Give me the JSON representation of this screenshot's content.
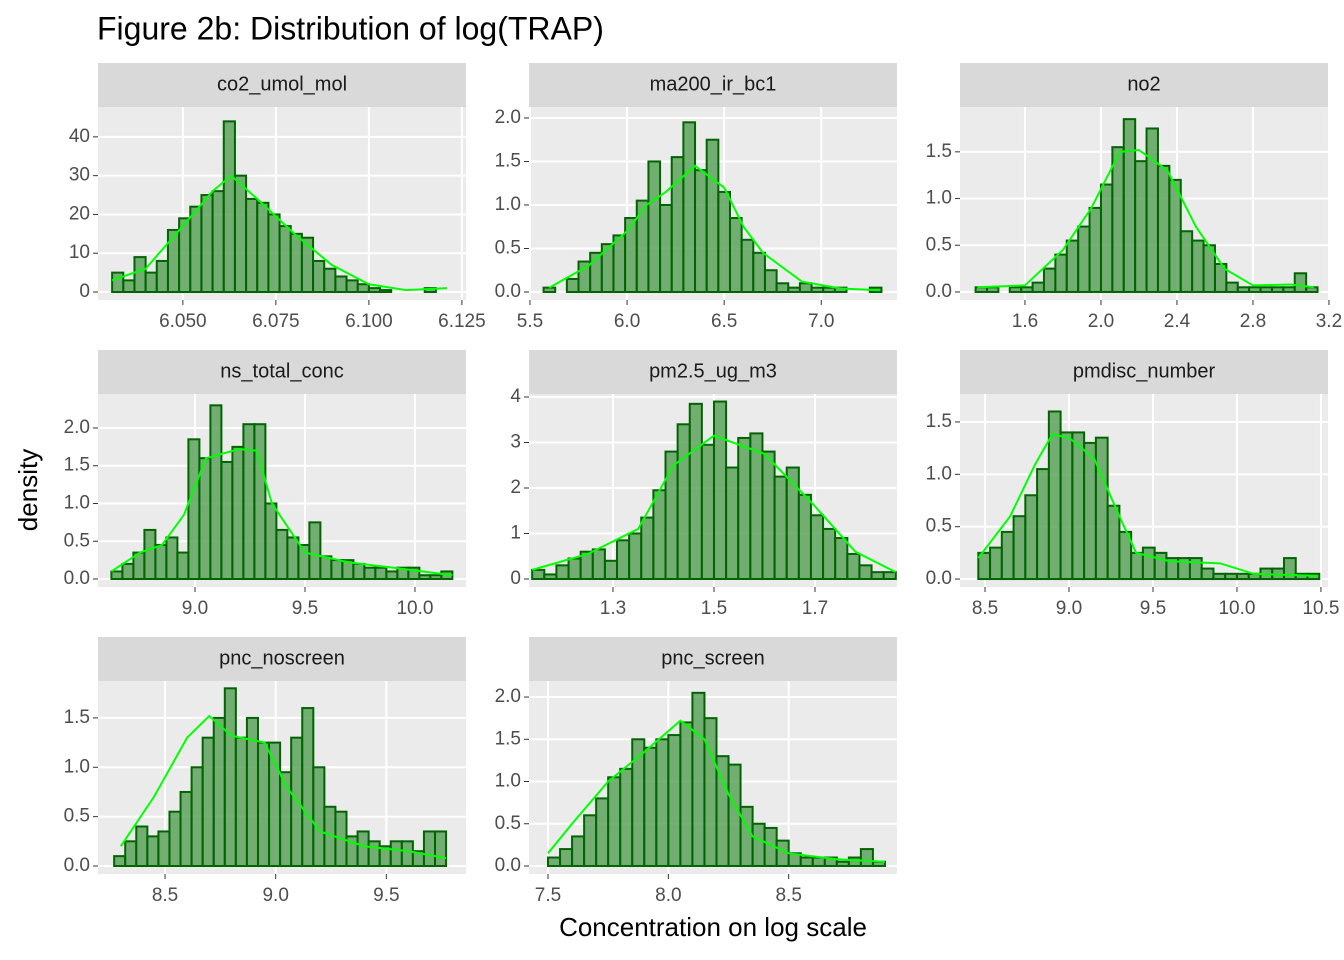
{
  "title": "Figure 2b: Distribution of log(TRAP)",
  "xlabel": "Concentration on log scale",
  "ylabel": "density",
  "chart_data": [
    {
      "type": "histogram",
      "title": "co2_umol_mol",
      "color": "#5da35d",
      "edgecolor": "#006400",
      "curve_color": "#00ff00",
      "grid": true,
      "bins": [
        6.031,
        6.034,
        6.037,
        6.04,
        6.043,
        6.046,
        6.049,
        6.052,
        6.055,
        6.058,
        6.061,
        6.064,
        6.067,
        6.07,
        6.073,
        6.076,
        6.079,
        6.082,
        6.085,
        6.088,
        6.091,
        6.094,
        6.097,
        6.1,
        6.103,
        6.106,
        6.109,
        6.112,
        6.115,
        6.118,
        6.121
      ],
      "values": [
        5,
        3,
        9,
        5,
        8,
        16,
        19,
        22,
        25,
        26,
        44,
        30,
        24,
        23,
        20,
        17,
        15,
        14,
        8,
        6,
        4,
        3,
        2,
        1,
        0.5,
        0,
        0,
        0,
        1,
        0
      ],
      "density_x": [
        6.031,
        6.04,
        6.05,
        6.058,
        6.063,
        6.07,
        6.08,
        6.09,
        6.1,
        6.11,
        6.121
      ],
      "density_y": [
        3,
        6,
        17,
        26,
        30,
        24,
        15,
        7,
        2,
        0.5,
        1
      ],
      "xlim": [
        6.0272,
        6.1261
      ],
      "ylim": [
        -2.06,
        47.7
      ],
      "xticks": [
        {
          "value": 6.05,
          "label": "6.050"
        },
        6.075,
        {
          "value": 6.1,
          "label": "6.100"
        },
        6.125
      ],
      "yticks": [
        0,
        10,
        20,
        30,
        40
      ]
    },
    {
      "type": "histogram",
      "title": "ma200_ir_bc1",
      "color": "#5da35d",
      "edgecolor": "#006400",
      "curve_color": "#00ff00",
      "grid": true,
      "bins": [
        5.57,
        5.63,
        5.69,
        5.75,
        5.81,
        5.87,
        5.93,
        5.99,
        6.05,
        6.11,
        6.17,
        6.23,
        6.29,
        6.35,
        6.41,
        6.47,
        6.53,
        6.59,
        6.65,
        6.71,
        6.77,
        6.83,
        6.89,
        6.95,
        7.01,
        7.07,
        7.13,
        7.19,
        7.25,
        7.31
      ],
      "values": [
        0.05,
        0,
        0.15,
        0.35,
        0.45,
        0.55,
        0.65,
        0.85,
        1.05,
        1.5,
        1.0,
        1.55,
        1.95,
        1.4,
        1.75,
        1.15,
        0.85,
        0.6,
        0.45,
        0.25,
        0.1,
        0.05,
        0.1,
        0.05,
        0.05,
        0.05,
        0,
        0,
        0.05
      ],
      "density_x": [
        5.6,
        5.8,
        6.0,
        6.1,
        6.2,
        6.35,
        6.5,
        6.6,
        6.7,
        6.9,
        7.1,
        7.3
      ],
      "density_y": [
        0.05,
        0.3,
        0.7,
        1.0,
        1.15,
        1.45,
        1.2,
        0.75,
        0.45,
        0.12,
        0.04,
        0.02
      ],
      "xlim": [
        5.495,
        7.39
      ],
      "ylim": [
        -0.092,
        2.126
      ],
      "xticks": [
        5.5,
        {
          "value": 6,
          "label": "6.0"
        },
        6.5,
        {
          "value": 7,
          "label": "7.0"
        }
      ],
      "yticks": [
        {
          "value": 0,
          "label": "0.0"
        },
        0.5,
        {
          "value": 1,
          "label": "1.0"
        },
        1.5,
        {
          "value": 2,
          "label": "2.0"
        }
      ]
    },
    {
      "type": "histogram",
      "title": "no2",
      "color": "#5da35d",
      "edgecolor": "#006400",
      "curve_color": "#00ff00",
      "grid": true,
      "bins": [
        1.34,
        1.4,
        1.46,
        1.52,
        1.58,
        1.64,
        1.7,
        1.76,
        1.82,
        1.88,
        1.94,
        2,
        2.06,
        2.12,
        2.18,
        2.24,
        2.3,
        2.36,
        2.42,
        2.48,
        2.54,
        2.6,
        2.66,
        2.72,
        2.78,
        2.84,
        2.9,
        2.96,
        3.02,
        3.08,
        3.14
      ],
      "values": [
        0.05,
        0.05,
        0,
        0.05,
        0.05,
        0.1,
        0.25,
        0.4,
        0.55,
        0.7,
        0.9,
        1.15,
        1.55,
        1.85,
        1.4,
        1.75,
        1.35,
        1.2,
        0.65,
        0.55,
        0.5,
        0.3,
        0.1,
        0.05,
        0.05,
        0.05,
        0.05,
        0.05,
        0.2,
        0.05
      ],
      "density_x": [
        1.35,
        1.6,
        1.8,
        1.95,
        2.1,
        2.2,
        2.35,
        2.5,
        2.65,
        2.8,
        3.0,
        3.12
      ],
      "density_y": [
        0.05,
        0.07,
        0.45,
        0.9,
        1.5,
        1.52,
        1.3,
        0.7,
        0.25,
        0.07,
        0.08,
        0.05
      ],
      "xlim": [
        1.258,
        3.195
      ],
      "ylim": [
        -0.086,
        1.98
      ],
      "xticks": [
        1.6,
        {
          "value": 2,
          "label": "2.0"
        },
        2.4,
        2.8,
        3.2
      ],
      "yticks": [
        {
          "value": 0,
          "label": "0.0"
        },
        0.5,
        {
          "value": 1,
          "label": "1.0"
        },
        1.5
      ]
    },
    {
      "type": "histogram",
      "title": "ns_total_conc",
      "color": "#5da35d",
      "edgecolor": "#006400",
      "curve_color": "#00ff00",
      "grid": true,
      "bins": [
        8.62,
        8.67,
        8.72,
        8.77,
        8.82,
        8.87,
        8.92,
        8.97,
        9.02,
        9.07,
        9.12,
        9.17,
        9.22,
        9.27,
        9.32,
        9.37,
        9.42,
        9.47,
        9.52,
        9.57,
        9.62,
        9.67,
        9.72,
        9.77,
        9.82,
        9.87,
        9.92,
        9.97,
        10.02,
        10.07,
        10.12,
        10.17
      ],
      "values": [
        0.1,
        0.2,
        0.35,
        0.65,
        0.45,
        0.55,
        0.35,
        1.85,
        1.6,
        2.3,
        1.55,
        1.75,
        2.05,
        2.05,
        1.0,
        0.65,
        0.55,
        0.45,
        0.75,
        0.3,
        0.25,
        0.25,
        0.2,
        0.15,
        0.15,
        0.1,
        0.15,
        0.15,
        0.05,
        0.05,
        0.1
      ],
      "density_x": [
        8.62,
        8.75,
        8.85,
        8.95,
        9.05,
        9.2,
        9.28,
        9.35,
        9.5,
        9.7,
        9.9,
        10.17
      ],
      "density_y": [
        0.1,
        0.35,
        0.45,
        0.85,
        1.6,
        1.72,
        1.7,
        1.0,
        0.35,
        0.22,
        0.15,
        0.05
      ],
      "xlim": [
        8.559,
        10.232
      ],
      "ylim": [
        -0.106,
        2.45
      ],
      "xticks": [
        {
          "value": 9,
          "label": "9.0"
        },
        9.5,
        {
          "value": 10,
          "label": "10.0"
        }
      ],
      "yticks": [
        {
          "value": 0,
          "label": "0.0"
        },
        0.5,
        {
          "value": 1,
          "label": "1.0"
        },
        1.5,
        {
          "value": 2,
          "label": "2.0"
        }
      ]
    },
    {
      "type": "histogram",
      "title": "pm2.5_ug_m3",
      "color": "#5da35d",
      "edgecolor": "#006400",
      "curve_color": "#00ff00",
      "grid": true,
      "bins": [
        1.14,
        1.164,
        1.188,
        1.212,
        1.236,
        1.26,
        1.284,
        1.308,
        1.332,
        1.356,
        1.38,
        1.404,
        1.428,
        1.452,
        1.476,
        1.5,
        1.524,
        1.548,
        1.572,
        1.596,
        1.62,
        1.644,
        1.668,
        1.692,
        1.716,
        1.74,
        1.764,
        1.788,
        1.812,
        1.836,
        1.86
      ],
      "values": [
        0.2,
        0.1,
        0.3,
        0.45,
        0.6,
        0.65,
        0.4,
        0.85,
        1.0,
        1.35,
        1.95,
        2.8,
        3.4,
        3.85,
        2.95,
        3.9,
        2.45,
        3.1,
        3.2,
        2.8,
        2.25,
        2.45,
        1.85,
        1.4,
        1.1,
        0.9,
        0.55,
        0.3,
        0.15,
        0.15
      ],
      "density_x": [
        1.14,
        1.25,
        1.35,
        1.42,
        1.5,
        1.55,
        1.6,
        1.7,
        1.78,
        1.86
      ],
      "density_y": [
        0.2,
        0.55,
        1.1,
        2.5,
        3.15,
        2.95,
        2.75,
        1.6,
        0.6,
        0.15
      ],
      "xlim": [
        1.1337,
        1.8624
      ],
      "ylim": [
        -0.176,
        4.066
      ],
      "xticks": [
        1.3,
        1.5,
        1.7
      ],
      "yticks": [
        0,
        1,
        2,
        3,
        4
      ]
    },
    {
      "type": "histogram",
      "title": "pmdisc_number",
      "color": "#5da35d",
      "edgecolor": "#006400",
      "curve_color": "#00ff00",
      "grid": true,
      "bins": [
        8.46,
        8.53,
        8.6,
        8.67,
        8.74,
        8.81,
        8.88,
        8.95,
        9.02,
        9.09,
        9.16,
        9.23,
        9.3,
        9.37,
        9.44,
        9.51,
        9.58,
        9.65,
        9.72,
        9.79,
        9.86,
        9.93,
        10,
        10.07,
        10.14,
        10.21,
        10.28,
        10.35,
        10.42,
        10.49
      ],
      "values": [
        0.25,
        0.3,
        0.45,
        0.6,
        0.8,
        1.05,
        1.6,
        1.4,
        1.4,
        1.3,
        1.35,
        0.7,
        0.45,
        0.25,
        0.3,
        0.25,
        0.2,
        0.2,
        0.2,
        0.1,
        0.05,
        0.05,
        0.05,
        0.05,
        0.1,
        0.1,
        0.2,
        0.05,
        0.05
      ],
      "density_x": [
        8.46,
        8.65,
        8.8,
        8.9,
        9.0,
        9.15,
        9.3,
        9.4,
        9.6,
        9.9,
        10.1,
        10.48
      ],
      "density_y": [
        0.2,
        0.6,
        1.1,
        1.38,
        1.35,
        1.15,
        0.6,
        0.25,
        0.17,
        0.15,
        0.05,
        0.03
      ],
      "xlim": [
        8.351,
        10.542
      ],
      "ylim": [
        -0.076,
        1.767
      ],
      "xticks": [
        8.5,
        {
          "value": 9,
          "label": "9.0"
        },
        9.5,
        {
          "value": 10,
          "label": "10.0"
        },
        10.5
      ],
      "yticks": [
        {
          "value": 0,
          "label": "0.0"
        },
        0.5,
        {
          "value": 1,
          "label": "1.0"
        },
        1.5
      ]
    },
    {
      "type": "histogram",
      "title": "pnc_noscreen",
      "color": "#5da35d",
      "edgecolor": "#006400",
      "curve_color": "#00ff00",
      "grid": true,
      "bins": [
        8.27,
        8.32,
        8.37,
        8.42,
        8.47,
        8.52,
        8.57,
        8.62,
        8.67,
        8.72,
        8.77,
        8.82,
        8.87,
        8.92,
        8.97,
        9.02,
        9.07,
        9.12,
        9.17,
        9.22,
        9.27,
        9.32,
        9.37,
        9.42,
        9.47,
        9.52,
        9.57,
        9.62,
        9.67,
        9.72,
        9.77
      ],
      "values": [
        0.1,
        0.25,
        0.4,
        0.3,
        0.35,
        0.55,
        0.75,
        1.0,
        1.3,
        1.5,
        1.8,
        1.3,
        1.5,
        1.25,
        1.25,
        0.95,
        1.3,
        1.6,
        1.0,
        0.6,
        0.55,
        0.3,
        0.35,
        0.25,
        0.2,
        0.25,
        0.25,
        0.15,
        0.35,
        0.35
      ],
      "density_x": [
        8.3,
        8.45,
        8.6,
        8.7,
        8.8,
        8.95,
        9.05,
        9.2,
        9.4,
        9.6,
        9.77
      ],
      "density_y": [
        0.2,
        0.7,
        1.3,
        1.52,
        1.32,
        1.25,
        0.8,
        0.35,
        0.2,
        0.15,
        0.08
      ],
      "xlim": [
        8.197,
        9.86
      ],
      "ylim": [
        -0.081,
        1.874
      ],
      "xticks": [
        8.5,
        {
          "value": 9,
          "label": "9.0"
        },
        9.5
      ],
      "yticks": [
        {
          "value": 0,
          "label": "0.0"
        },
        0.5,
        {
          "value": 1,
          "label": "1.0"
        },
        1.5
      ]
    },
    {
      "type": "histogram",
      "title": "pnc_screen",
      "color": "#5da35d",
      "edgecolor": "#006400",
      "curve_color": "#00ff00",
      "grid": true,
      "bins": [
        7.5,
        7.55,
        7.6,
        7.65,
        7.7,
        7.75,
        7.8,
        7.85,
        7.9,
        7.95,
        8,
        8.05,
        8.1,
        8.15,
        8.2,
        8.25,
        8.3,
        8.35,
        8.4,
        8.45,
        8.5,
        8.55,
        8.6,
        8.65,
        8.7,
        8.75,
        8.8,
        8.85,
        8.9
      ],
      "values": [
        0.1,
        0.2,
        0.35,
        0.6,
        0.8,
        1.05,
        1.15,
        1.5,
        1.4,
        1.5,
        1.55,
        1.7,
        2.05,
        1.75,
        1.3,
        1.2,
        0.7,
        0.5,
        0.45,
        0.3,
        0.15,
        0.1,
        0.1,
        0.1,
        0.05,
        0.1,
        0.2,
        0.05
      ],
      "density_x": [
        7.5,
        7.6,
        7.75,
        7.9,
        8.05,
        8.15,
        8.25,
        8.35,
        8.5,
        8.7,
        8.9
      ],
      "density_y": [
        0.15,
        0.5,
        1.0,
        1.35,
        1.72,
        1.5,
        0.85,
        0.35,
        0.15,
        0.08,
        0.05
      ],
      "xlim": [
        7.421,
        8.95
      ],
      "ylim": [
        -0.095,
        2.19
      ],
      "xticks": [
        7.5,
        {
          "value": 8,
          "label": "8.0"
        },
        8.5
      ],
      "yticks": [
        {
          "value": 0,
          "label": "0.0"
        },
        0.5,
        {
          "value": 1,
          "label": "1.0"
        },
        1.5,
        {
          "value": 2,
          "label": "2.0"
        }
      ]
    }
  ]
}
